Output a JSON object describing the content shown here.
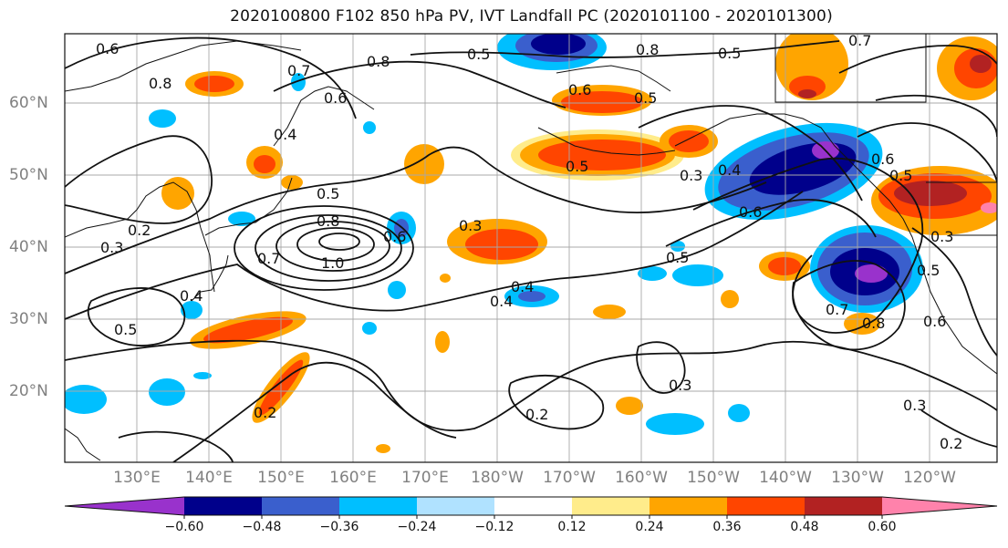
{
  "title": "2020100800 F102 850 hPa PV, IVT Landfall PC (2020101100 - 2020101300)",
  "map": {
    "lat_labels": [
      "60°N",
      "50°N",
      "40°N",
      "30°N",
      "20°N"
    ],
    "lon_labels": [
      "130°E",
      "140°E",
      "150°E",
      "160°E",
      "170°E",
      "180°W",
      "170°W",
      "160°W",
      "150°W",
      "140°W",
      "130°W",
      "120°W"
    ],
    "contour_labels": [
      "0.6",
      "0.8",
      "0.7",
      "0.5",
      "0.8",
      "0.5",
      "0.8",
      "0.7",
      "0.6",
      "0.4",
      "0.5",
      "0.6",
      "0.5",
      "0.3",
      "0.4",
      "0.5",
      "0.8",
      "1.0",
      "0.7",
      "0.6",
      "0.3",
      "0.3",
      "0.2",
      "0.4",
      "0.5",
      "0.4",
      "0.5",
      "0.6",
      "0.2",
      "0.2",
      "0.3",
      "0.5",
      "0.6",
      "0.8",
      "0.7",
      "0.6",
      "0.5",
      "0.3",
      "0.2",
      "0.3",
      "0.4"
    ]
  },
  "colorbar": {
    "colors": [
      "#9932cc",
      "#00008b",
      "#3a5fcd",
      "#00bfff",
      "#b0e2ff",
      "#ffffff",
      "#ffec8b",
      "#ffa500",
      "#ff4500",
      "#b22222",
      "#ff82ab"
    ],
    "tick_labels": [
      "−0.60",
      "−0.48",
      "−0.36",
      "−0.24",
      "−0.12",
      "0.12",
      "0.24",
      "0.36",
      "0.48",
      "0.60"
    ]
  }
}
